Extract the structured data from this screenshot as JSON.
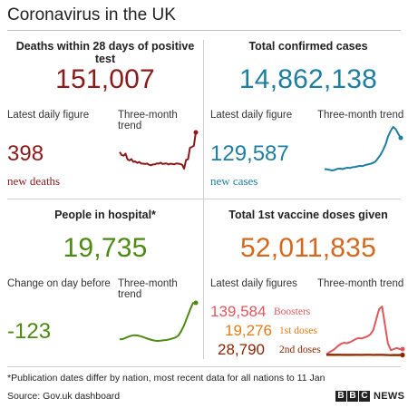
{
  "title": "Coronavirus in the UK",
  "deaths": {
    "title": "Deaths within 28 days of positive test",
    "total": "151,007",
    "latest_label": "Latest daily figure",
    "trend_label": "Three-month trend",
    "daily": "398",
    "note": "new deaths",
    "color": "#8b1a1a"
  },
  "cases": {
    "title": "Total confirmed cases",
    "total": "14,862,138",
    "latest_label": "Latest daily figure",
    "trend_label": "Three-month trend",
    "daily": "129,587",
    "note": "new cases",
    "color": "#1e7ea0"
  },
  "hospital": {
    "title": "People in hospital*",
    "total": "19,735",
    "latest_label": "Change on day before",
    "trend_label": "Three-month trend",
    "daily": "-123",
    "color": "#4c8a12"
  },
  "vaccine": {
    "title": "Total 1st vaccine doses given",
    "total": "52,011,835",
    "latest_label": "Latest daily figures",
    "trend_label": "Three-month trend",
    "total_color": "#d2691e",
    "rows": [
      {
        "value": "139,584",
        "label": "Boosters",
        "color": "#e0575b"
      },
      {
        "value": "19,276",
        "label": "1st doses",
        "color": "#e07b16"
      },
      {
        "value": "28,790",
        "label": "2nd doses",
        "color": "#8b2500"
      }
    ]
  },
  "footnote": "*Publication dates differ by nation, most recent data for all nations to 11 Jan",
  "source": "Source: Gov.uk dashboard",
  "brand": {
    "letters": [
      "B",
      "B",
      "C"
    ],
    "word": "NEWS"
  },
  "chart_data": [
    {
      "type": "line",
      "title": "Three-month trend",
      "series": [
        {
          "name": "",
          "values": [
            230,
            200,
            195,
            215,
            160,
            150,
            162,
            135,
            140,
            125,
            135,
            120,
            118,
            115,
            120,
            108,
            102,
            110,
            112,
            120,
            118,
            128,
            115,
            118,
            120,
            110,
            118,
            115,
            112,
            120,
            118,
            115,
            108,
            70,
            155,
            160,
            270,
            280,
            290,
            420
          ]
        }
      ],
      "color": "#8b1a1a"
    },
    {
      "type": "line",
      "title": "Three-month trend",
      "series": [
        {
          "name": "",
          "values": [
            36000,
            35000,
            33000,
            31000,
            33000,
            37000,
            38000,
            36000,
            39000,
            41000,
            40000,
            43000,
            44000,
            46000,
            48000,
            47000,
            51000,
            53000,
            55000,
            58000,
            63000,
            75000,
            88000,
            105000,
            125000,
            155000,
            175000,
            190000,
            182000,
            165000,
            150000
          ]
        }
      ],
      "color": "#1e7ea0"
    },
    {
      "type": "line",
      "title": "Three-month trend",
      "series": [
        {
          "name": "",
          "values": [
            7800,
            7900,
            8300,
            8700,
            9000,
            9200,
            9100,
            8900,
            8600,
            8200,
            7900,
            7600,
            7400,
            7300,
            7400,
            7500,
            7600,
            7800,
            8100,
            8400,
            9000,
            10500,
            12500,
            15000,
            17500,
            19800,
            19900
          ]
        }
      ],
      "color": "#4c8a12"
    },
    {
      "type": "line",
      "title": "Three-month trend",
      "series": [
        {
          "name": "Boosters",
          "values": [
            40000,
            80000,
            110000,
            150000,
            200000,
            240000,
            260000,
            250000,
            270000,
            300000,
            330000,
            350000,
            340000,
            360000,
            380000,
            420000,
            500000,
            700000,
            900000,
            950000,
            600000,
            250000,
            120000,
            140000,
            160000,
            140000,
            139584
          ]
        },
        {
          "name": "1st doses",
          "values": [
            25000,
            26000,
            24000,
            25000,
            27000,
            26000,
            25000,
            24000,
            26000,
            25000,
            27000,
            26000,
            28000,
            27000,
            29000,
            28000,
            27000,
            26000,
            28000,
            27000,
            24000,
            22000,
            20000,
            21000,
            20000,
            19500,
            19276
          ]
        },
        {
          "name": "2nd doses",
          "values": [
            35000,
            34000,
            35000,
            33000,
            34000,
            32000,
            33000,
            32000,
            31000,
            33000,
            32000,
            31000,
            30000,
            31000,
            32000,
            31000,
            30000,
            31000,
            33000,
            32000,
            30000,
            28000,
            27000,
            29000,
            28000,
            29000,
            28790
          ]
        }
      ]
    }
  ]
}
